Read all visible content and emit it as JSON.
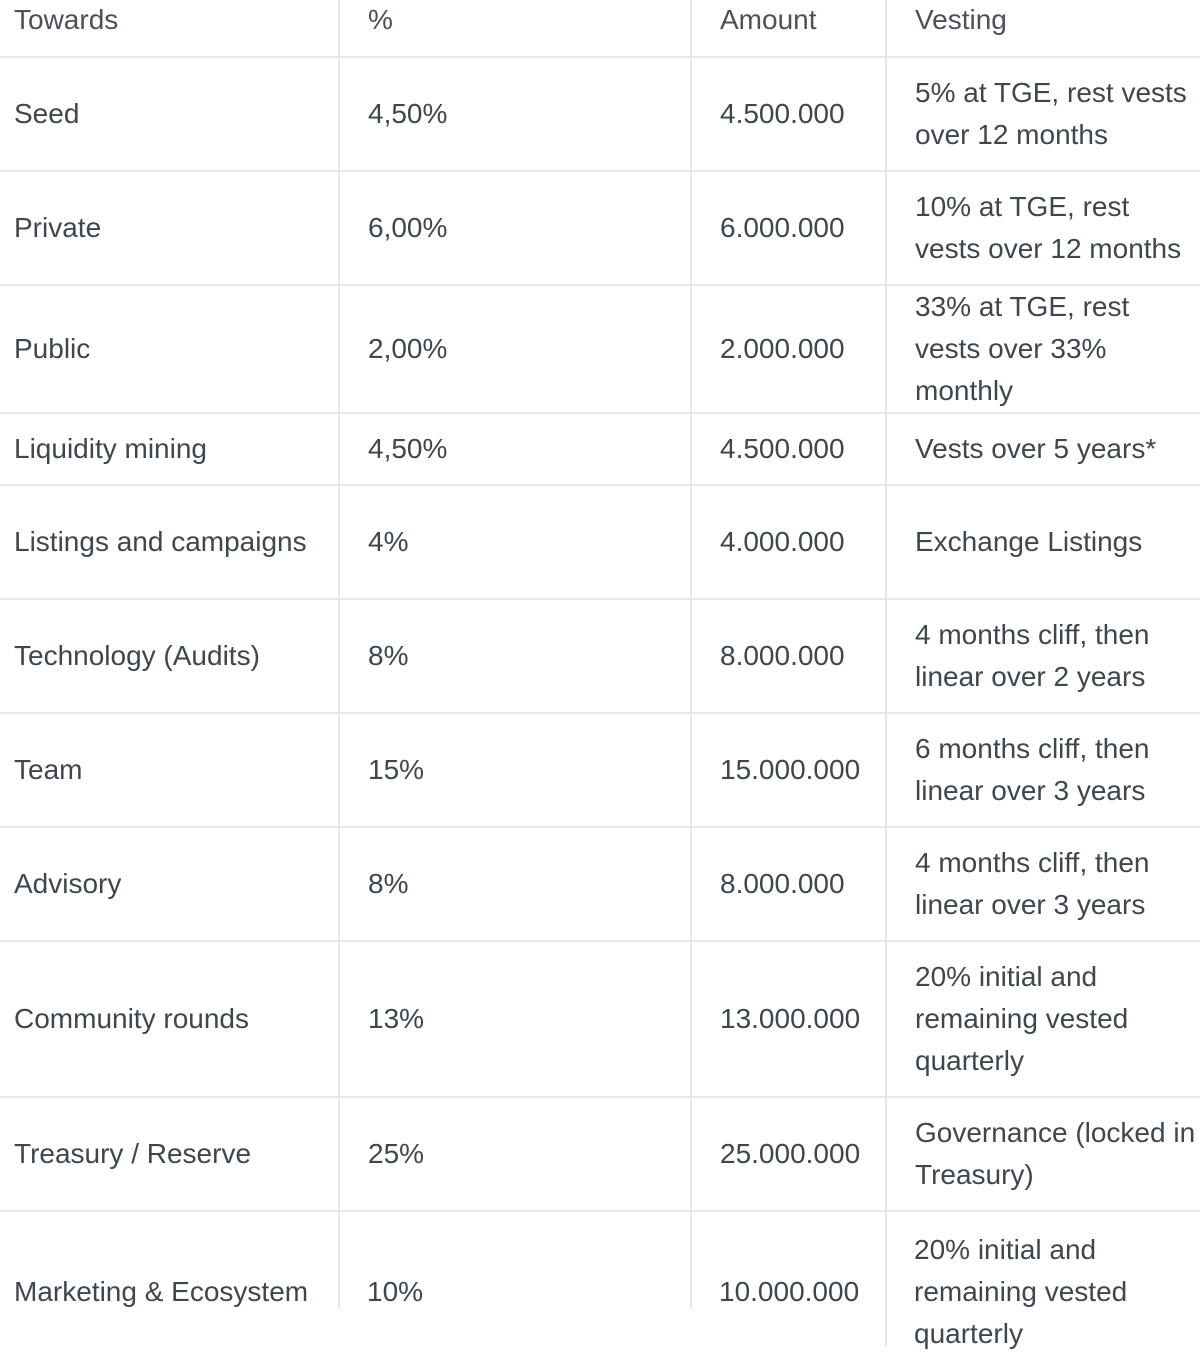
{
  "table": {
    "headers": [
      "Towards",
      "%",
      "Amount",
      "Vesting"
    ],
    "rows": [
      {
        "towards": "Seed",
        "percent": "4,50%",
        "amount": "4.500.000",
        "vesting": "5% at TGE, rest vests over 12 months"
      },
      {
        "towards": "Private",
        "percent": "6,00%",
        "amount": "6.000.000",
        "vesting": "10% at TGE, rest vests over 12 months"
      },
      {
        "towards": "Public",
        "percent": "2,00%",
        "amount": "2.000.000",
        "vesting": "33% at TGE, rest vests over 33% monthly"
      },
      {
        "towards": "Liquidity mining",
        "percent": "4,50%",
        "amount": "4.500.000",
        "vesting": "Vests over 5 years*"
      },
      {
        "towards": "Listings and campaigns",
        "percent": "4%",
        "amount": "4.000.000",
        "vesting": "Exchange Listings"
      },
      {
        "towards": "Technology (Audits)",
        "percent": "8%",
        "amount": "8.000.000",
        "vesting": "4 months cliff, then linear over 2 years"
      },
      {
        "towards": "Team",
        "percent": "15%",
        "amount": "15.000.000",
        "vesting": "6 months cliff, then linear over 3 years"
      },
      {
        "towards": "Advisory",
        "percent": "8%",
        "amount": "8.000.000",
        "vesting": "4 months cliff, then linear over 3 years"
      },
      {
        "towards": "Community rounds",
        "percent": "13%",
        "amount": "13.000.000",
        "vesting": "20% initial and remaining vested quarterly"
      },
      {
        "towards": "Treasury / Reserve",
        "percent": "25%",
        "amount": "25.000.000",
        "vesting": "Governance (locked in Treasury)"
      },
      {
        "towards": "Marketing & Ecosystem",
        "percent": "10%",
        "amount": "10.000.000",
        "vesting": "20% initial and remaining vested quarterly"
      }
    ]
  }
}
